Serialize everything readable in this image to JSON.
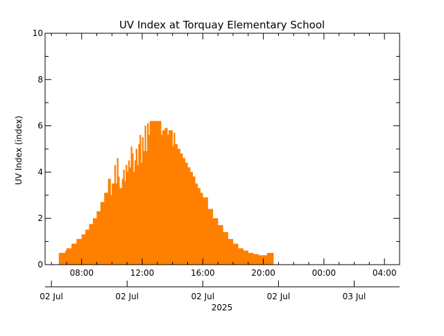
{
  "chart_data": {
    "type": "area",
    "title": "UV Index at Torquay Elementary School",
    "ylabel": "UV Index (index)",
    "xlabel": "",
    "year_label": "2025",
    "ylim": [
      0,
      10
    ],
    "y_ticks": [
      0,
      2,
      4,
      6,
      8,
      10
    ],
    "xlim": [
      "2025-07-02 05:35",
      "2025-07-03 05:00"
    ],
    "x_time_ticks": [
      "08:00",
      "12:00",
      "16:00",
      "20:00",
      "00:00",
      "04:00"
    ],
    "x_date_ticks": [
      "02 Jul",
      "02 Jul",
      "02 Jul",
      "02 Jul",
      "03 Jul"
    ],
    "grid": false,
    "fill_color": "#ff8000",
    "series": [
      {
        "x": [
          "06:30",
          "06:55",
          "07:00",
          "07:20",
          "07:40",
          "08:00",
          "08:15",
          "08:30",
          "08:45",
          "09:00",
          "09:15",
          "09:30",
          "09:45",
          "09:55",
          "10:00",
          "10:10",
          "10:15",
          "10:20",
          "10:25",
          "10:30",
          "10:40",
          "10:45",
          "10:50",
          "10:55",
          "11:00",
          "11:05",
          "11:10",
          "11:15",
          "11:20",
          "11:25",
          "11:30",
          "11:35",
          "11:40",
          "11:45",
          "11:50",
          "11:55",
          "12:00",
          "12:05",
          "12:10",
          "12:15",
          "12:20",
          "12:25",
          "12:30",
          "12:40",
          "12:50",
          "13:00",
          "13:10",
          "13:15",
          "13:20",
          "13:30",
          "13:40",
          "13:45",
          "13:50",
          "14:00",
          "14:05",
          "14:10",
          "14:20",
          "14:30",
          "14:40",
          "14:50",
          "15:00",
          "15:10",
          "15:20",
          "15:30",
          "15:40",
          "15:50",
          "16:00",
          "16:20",
          "16:40",
          "17:00",
          "17:20",
          "17:40",
          "18:00",
          "18:20",
          "18:40",
          "19:00",
          "19:20",
          "19:40",
          "20:00",
          "20:15",
          "20:20",
          "20:40"
        ],
        "values": [
          0.5,
          0.6,
          0.7,
          0.9,
          1.1,
          1.3,
          1.5,
          1.75,
          2.0,
          2.3,
          2.7,
          3.1,
          3.7,
          3.0,
          3.5,
          4.3,
          3.5,
          4.6,
          3.8,
          3.3,
          3.7,
          4.1,
          3.6,
          4.3,
          4.0,
          4.5,
          4.2,
          5.1,
          4.8,
          4.0,
          4.5,
          5.0,
          4.3,
          5.2,
          5.6,
          4.4,
          5.5,
          4.9,
          6.0,
          4.9,
          6.1,
          5.6,
          6.2,
          6.2,
          6.2,
          6.2,
          6.2,
          5.6,
          5.8,
          5.9,
          5.6,
          5.8,
          5.8,
          5.1,
          5.7,
          5.2,
          5.0,
          4.8,
          4.6,
          4.4,
          4.2,
          4.0,
          3.8,
          3.5,
          3.3,
          3.1,
          2.9,
          2.4,
          2.0,
          1.7,
          1.4,
          1.1,
          0.9,
          0.7,
          0.6,
          0.5,
          0.45,
          0.4,
          0.4,
          0.5,
          0.5,
          0
        ]
      }
    ]
  }
}
